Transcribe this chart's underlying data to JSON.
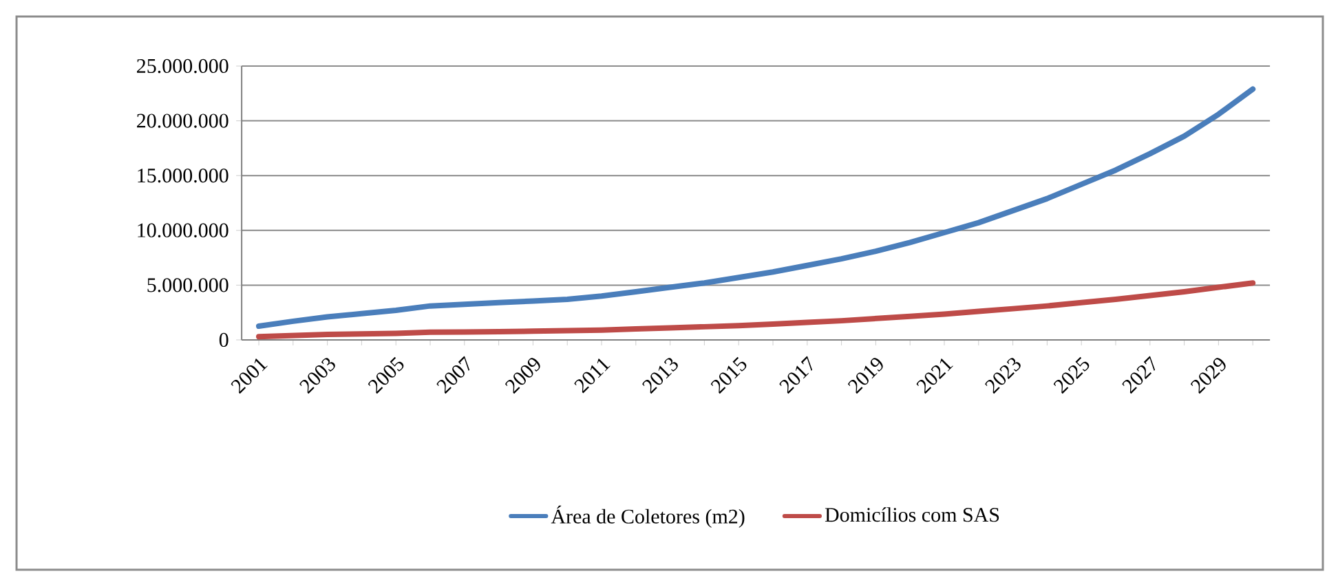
{
  "chart_data": {
    "type": "line",
    "categories": [
      "2001",
      null,
      "2003",
      null,
      "2005",
      null,
      "2007",
      null,
      "2009",
      null,
      "2011",
      null,
      "2013",
      null,
      "2015",
      null,
      "2017",
      null,
      "2019",
      null,
      "2021",
      null,
      "2023",
      null,
      "2025",
      null,
      "2027",
      null,
      "2029",
      null
    ],
    "series": [
      {
        "name": "Área de Coletores (m2)",
        "color": "#4a7ebb",
        "values": [
          1250000,
          1700000,
          2100000,
          2400000,
          2700000,
          3100000,
          3250000,
          3400000,
          3550000,
          3700000,
          4000000,
          4400000,
          4800000,
          5200000,
          5700000,
          6200000,
          6800000,
          7400000,
          8100000,
          8900000,
          9800000,
          10700000,
          11800000,
          12900000,
          14200000,
          15500000,
          17000000,
          18600000,
          20600000,
          22900000
        ]
      },
      {
        "name": "Domicílios com SAS",
        "color": "#be4b48",
        "values": [
          300000,
          400000,
          500000,
          550000,
          600000,
          700000,
          720000,
          750000,
          800000,
          850000,
          900000,
          1000000,
          1100000,
          1200000,
          1300000,
          1450000,
          1600000,
          1750000,
          1950000,
          2150000,
          2350000,
          2600000,
          2850000,
          3100000,
          3400000,
          3700000,
          4050000,
          4400000,
          4800000,
          5200000
        ]
      }
    ],
    "ylim": [
      0,
      25000000
    ],
    "yticks": [
      {
        "value": 0,
        "label": "0"
      },
      {
        "value": 5000000,
        "label": "5.000.000"
      },
      {
        "value": 10000000,
        "label": "10.000.000"
      },
      {
        "value": 15000000,
        "label": "15.000.000"
      },
      {
        "value": 20000000,
        "label": "20.000.000"
      },
      {
        "value": 25000000,
        "label": "25.000.000"
      }
    ],
    "grid": "y",
    "legend": "bottom",
    "marker": "none",
    "line_style": "solid"
  }
}
